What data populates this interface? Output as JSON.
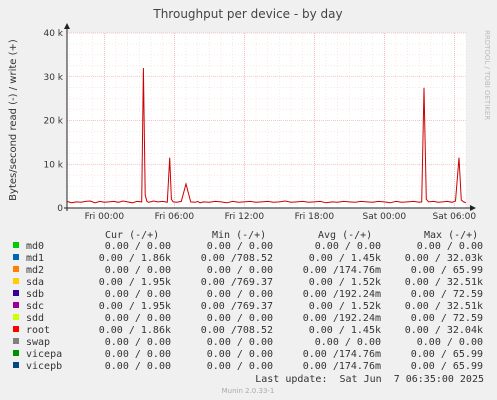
{
  "title": "Throughput per device - by day",
  "side_label": "RRDTOOL / TOBI OETIKER",
  "footer": "Munin 2.0.33-1",
  "last_update": "Last update:  Sat Jun  7 06:35:00 2025",
  "colors": {
    "grid": "#f0a0a0",
    "line": "#cc0000",
    "background": "#ffffff"
  },
  "legend_headers": {
    "cur": "Cur (-/+)",
    "min": "Min (-/+)",
    "avg": "Avg (-/+)",
    "max": "Max (-/+)"
  },
  "legend": [
    {
      "name": "md0",
      "color": "#00cc00",
      "cur": "0.00 /  0.00",
      "min": "0.00 /  0.00",
      "avg": "0.00 /  0.00",
      "max": "0.00 /  0.00"
    },
    {
      "name": "md1",
      "color": "#0066b3",
      "cur": "0.00 /  1.86k",
      "min": "0.00 /708.52",
      "avg": "0.00 /  1.45k",
      "max": "0.00 / 32.03k"
    },
    {
      "name": "md2",
      "color": "#ff8000",
      "cur": "0.00 /  0.00",
      "min": "0.00 /  0.00",
      "avg": "0.00 /174.76m",
      "max": "0.00 / 65.99"
    },
    {
      "name": "sda",
      "color": "#ffcc00",
      "cur": "0.00 /  1.95k",
      "min": "0.00 /769.37",
      "avg": "0.00 /  1.52k",
      "max": "0.00 / 32.51k"
    },
    {
      "name": "sdb",
      "color": "#330099",
      "cur": "0.00 /  0.00",
      "min": "0.00 /  0.00",
      "avg": "0.00 /192.24m",
      "max": "0.00 / 72.59"
    },
    {
      "name": "sdc",
      "color": "#990099",
      "cur": "0.00 /  1.95k",
      "min": "0.00 /769.37",
      "avg": "0.00 /  1.52k",
      "max": "0.00 / 32.51k"
    },
    {
      "name": "sdd",
      "color": "#ccff00",
      "cur": "0.00 /  0.00",
      "min": "0.00 /  0.00",
      "avg": "0.00 /192.24m",
      "max": "0.00 / 72.59"
    },
    {
      "name": "root",
      "color": "#ff0000",
      "cur": "0.00 /  1.86k",
      "min": "0.00 /708.52",
      "avg": "0.00 /  1.45k",
      "max": "0.00 / 32.04k"
    },
    {
      "name": "swap",
      "color": "#808080",
      "cur": "0.00 /  0.00",
      "min": "0.00 /  0.00",
      "avg": "0.00 /  0.00",
      "max": "0.00 /  0.00"
    },
    {
      "name": "vicepa",
      "color": "#008f00",
      "cur": "0.00 /  0.00",
      "min": "0.00 /  0.00",
      "avg": "0.00 /174.76m",
      "max": "0.00 / 65.99"
    },
    {
      "name": "vicepb",
      "color": "#00487d",
      "cur": "0.00 /  0.00",
      "min": "0.00 /  0.00",
      "avg": "0.00 /174.76m",
      "max": "0.00 / 65.99"
    }
  ],
  "chart_data": {
    "type": "line",
    "title": "Throughput per device - by day",
    "ylabel": "Bytes/second read (-) / write (+)",
    "ylim": [
      0,
      40000
    ],
    "yticks": [
      0,
      10000,
      20000,
      30000,
      40000
    ],
    "ytick_labels": [
      "0",
      "10 k",
      "20 k",
      "30 k",
      "40 k"
    ],
    "xlim_hours": [
      -3.2,
      31
    ],
    "xticks": [
      0,
      6,
      12,
      18,
      24,
      30
    ],
    "xtick_labels": [
      "Fri 00:00",
      "Fri 06:00",
      "Fri 12:00",
      "Fri 18:00",
      "Sat 00:00",
      "Sat 06:00"
    ],
    "grid": true,
    "series": [
      {
        "x": [
          -3.2,
          -2.8,
          -2.4,
          -2.0,
          -1.6,
          -1.2,
          -0.8,
          -0.4,
          0,
          0.4,
          0.8,
          1.2,
          1.6,
          2.0,
          2.4,
          2.8,
          3.2,
          3.35,
          3.5,
          3.65,
          3.8,
          4.2,
          4.6,
          5.0,
          5.4,
          5.6,
          5.75,
          5.9,
          6.2,
          6.6,
          7.0,
          7.4,
          7.8,
          8.0,
          8.2,
          8.5,
          9.0,
          9.5,
          10,
          10.5,
          11,
          11.5,
          12,
          12.5,
          13,
          13.5,
          14,
          14.5,
          15,
          15.5,
          16,
          16.5,
          17,
          17.5,
          18,
          18.5,
          19,
          19.5,
          20,
          20.5,
          21,
          21.5,
          22,
          22.5,
          23,
          23.5,
          24,
          24.5,
          25,
          25.5,
          26,
          26.5,
          27,
          27.2,
          27.4,
          27.6,
          27.8,
          28.2,
          28.6,
          29.0,
          29.4,
          29.8,
          30.1,
          30.4,
          30.6,
          30.8,
          31
        ],
        "values": [
          1500,
          1200,
          1400,
          1300,
          1500,
          1600,
          1200,
          1500,
          1300,
          1400,
          1500,
          1300,
          1600,
          1400,
          1200,
          1500,
          1400,
          32000,
          3000,
          1500,
          1300,
          1600,
          1400,
          1500,
          1300,
          11500,
          2000,
          1400,
          1300,
          1500,
          5500,
          1400,
          1300,
          1500,
          1200,
          1400,
          1300,
          1500,
          1400,
          1200,
          1500,
          1300,
          1400,
          1500,
          1300,
          1400,
          1500,
          1300,
          1400,
          1600,
          1300,
          1400,
          1500,
          1300,
          1400,
          1500,
          1200,
          1400,
          1300,
          1500,
          1400,
          1300,
          1500,
          1400,
          1300,
          1500,
          1400,
          1200,
          1500,
          1300,
          1400,
          1500,
          1300,
          1400,
          27500,
          2000,
          1400,
          1500,
          1300,
          1400,
          1500,
          1300,
          1600,
          11500,
          1800,
          1400,
          1200
        ]
      }
    ]
  }
}
